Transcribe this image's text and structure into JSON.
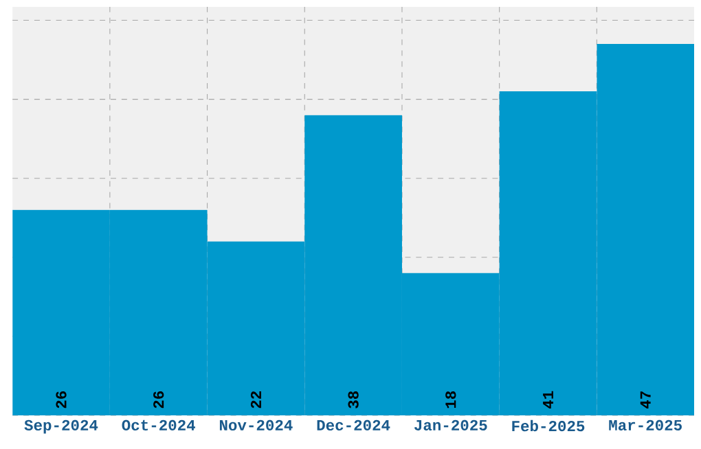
{
  "chart_data": {
    "type": "bar",
    "categories": [
      "Sep-2024",
      "Oct-2024",
      "Nov-2024",
      "Dec-2024",
      "Jan-2025",
      "Feb-2025",
      "Mar-2025"
    ],
    "values": [
      26,
      26,
      22,
      38,
      18,
      41,
      47
    ],
    "color": "#0099cc",
    "tick_labels": "x",
    "grid": true,
    "data_labels": true
  }
}
